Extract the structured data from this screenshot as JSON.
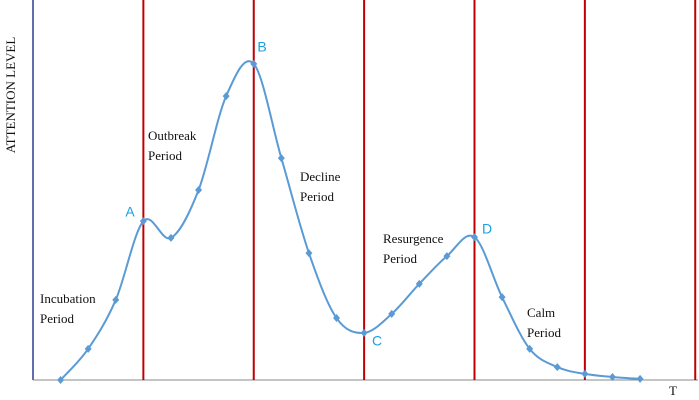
{
  "chart_data": {
    "type": "line",
    "y_label": "ATTENTION LEVEL",
    "x_label": "T",
    "x": [
      1,
      2,
      3,
      4,
      5,
      6,
      7,
      8,
      9,
      10,
      11,
      12,
      13,
      14,
      15,
      16,
      17,
      18,
      19,
      20,
      21,
      22
    ],
    "series": [
      {
        "color": "#5b9bd5",
        "values": [
          0,
          8.2,
          21.1,
          41.8,
          37.4,
          50,
          74.7,
          83.2,
          58.4,
          33.4,
          16.3,
          12.4,
          17.4,
          25.3,
          32.6,
          37.6,
          21.8,
          8.2,
          3.4,
          1.6,
          0.8,
          0.3
        ]
      }
    ],
    "xlim": [
      0,
      24.1
    ],
    "ylim": [
      0,
      100
    ],
    "phase_lines": [
      4,
      8,
      12,
      16,
      20,
      24
    ],
    "phase_line_color": "#c00000",
    "point_labels": [
      "A",
      "B",
      "C",
      "D"
    ],
    "point_label_color": "#1aa0dc",
    "period_labels": [
      [
        "Incubation",
        "Period"
      ],
      [
        "Outbreak",
        "Period"
      ],
      [
        "Decline",
        "Period"
      ],
      [
        "Resurgence",
        "Period"
      ],
      [
        "Calm",
        "Period"
      ]
    ]
  }
}
